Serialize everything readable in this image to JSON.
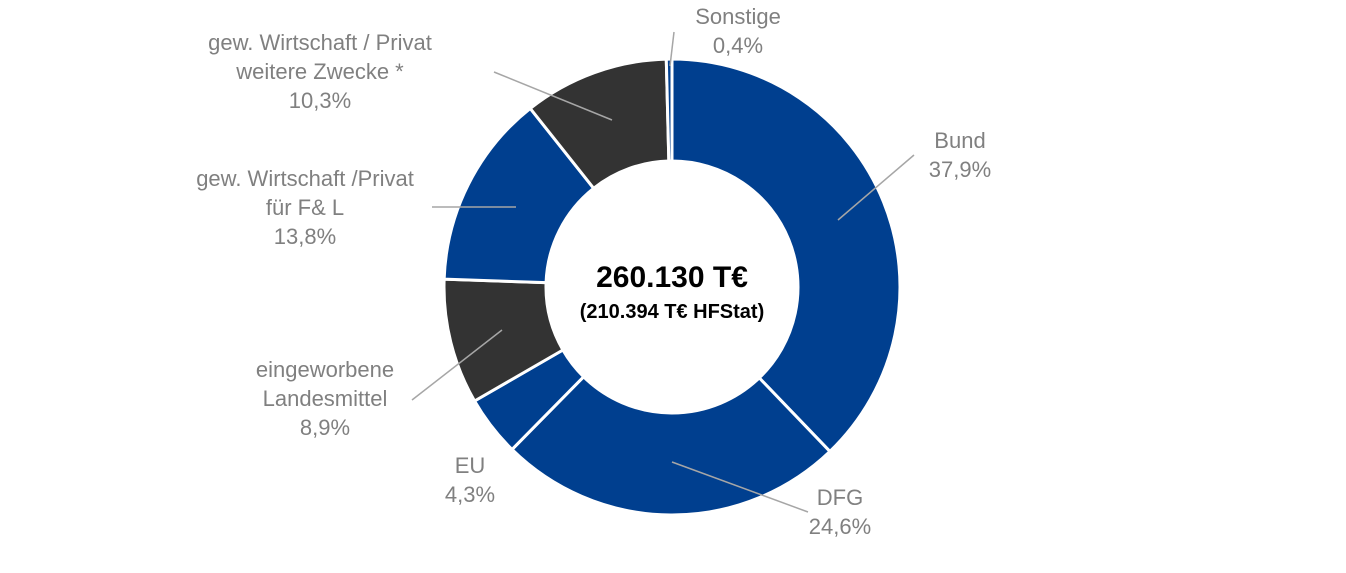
{
  "chart_data": {
    "type": "pie",
    "variant": "donut",
    "center_total": "260.130 T€",
    "center_subtitle": "(210.394 T€ HFStat)",
    "slices": [
      {
        "label_lines": [
          "Bund"
        ],
        "value": 37.9,
        "value_label": "37,9%",
        "color": "#003f8f"
      },
      {
        "label_lines": [
          "DFG"
        ],
        "value": 24.6,
        "value_label": "24,6%",
        "color": "#003f8f"
      },
      {
        "label_lines": [
          "EU"
        ],
        "value": 4.3,
        "value_label": "4,3%",
        "color": "#003f8f"
      },
      {
        "label_lines": [
          "eingeworbene",
          "Landesmittel"
        ],
        "value": 8.9,
        "value_label": "8,9%",
        "color": "#333333"
      },
      {
        "label_lines": [
          "gew. Wirtschaft /Privat",
          "für F& L"
        ],
        "value": 13.8,
        "value_label": "13,8%",
        "color": "#003f8f"
      },
      {
        "label_lines": [
          "gew. Wirtschaft / Privat",
          "weitere Zwecke *"
        ],
        "value": 10.3,
        "value_label": "10,3%",
        "color": "#333333"
      },
      {
        "label_lines": [
          "Sonstige"
        ],
        "value": 0.4,
        "value_label": "0,4%",
        "color": "#003f8f"
      }
    ]
  }
}
